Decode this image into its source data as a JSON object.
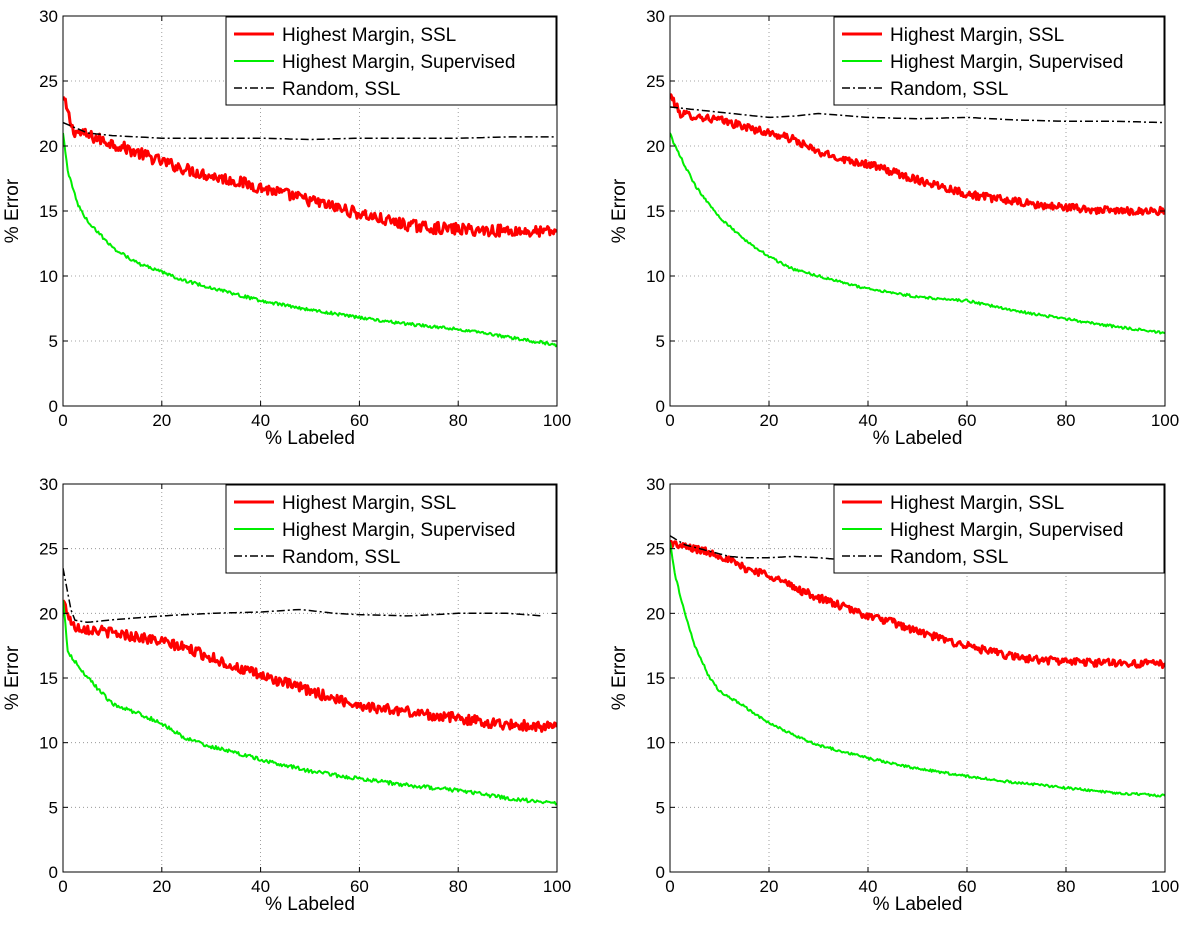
{
  "chart_data": [
    {
      "type": "line",
      "xlabel": "% Labeled",
      "ylabel": "% Error",
      "xlim": [
        0,
        100
      ],
      "ylim": [
        0,
        30
      ],
      "xticks": [
        0,
        20,
        40,
        60,
        80,
        100
      ],
      "yticks": [
        0,
        5,
        10,
        15,
        20,
        25,
        30
      ],
      "grid": true,
      "legend_position": "top-right",
      "series": [
        {
          "name": "Highest Margin, SSL",
          "color": "#ff0000",
          "style": "solid",
          "width": 3,
          "noise": 0.45,
          "x": [
            0,
            2,
            5,
            10,
            15,
            20,
            25,
            30,
            35,
            40,
            45,
            50,
            55,
            60,
            65,
            70,
            75,
            80,
            85,
            90,
            95,
            100
          ],
          "y": [
            23.8,
            21.2,
            20.8,
            20.2,
            19.5,
            18.8,
            18.2,
            17.7,
            17.3,
            16.8,
            16.3,
            15.8,
            15.3,
            14.8,
            14.3,
            13.9,
            13.7,
            13.6,
            13.5,
            13.5,
            13.4,
            13.4
          ]
        },
        {
          "name": "Highest Margin, Supervised",
          "color": "#00ee00",
          "style": "solid",
          "width": 2,
          "noise": 0.12,
          "x": [
            0,
            1,
            3,
            5,
            10,
            15,
            20,
            25,
            30,
            40,
            50,
            60,
            70,
            80,
            90,
            100
          ],
          "y": [
            21.0,
            18.0,
            15.5,
            14.2,
            12.2,
            11.0,
            10.3,
            9.6,
            9.1,
            8.1,
            7.4,
            6.8,
            6.3,
            5.9,
            5.3,
            4.7
          ]
        },
        {
          "name": "Random, SSL",
          "color": "#000000",
          "style": "dashdot",
          "width": 1.5,
          "noise": 0.0,
          "x": [
            0,
            5,
            10,
            20,
            30,
            40,
            50,
            60,
            70,
            80,
            90,
            100
          ],
          "y": [
            21.8,
            21.0,
            20.8,
            20.6,
            20.6,
            20.6,
            20.5,
            20.6,
            20.6,
            20.6,
            20.7,
            20.7
          ]
        }
      ]
    },
    {
      "type": "line",
      "xlabel": "% Labeled",
      "ylabel": "% Error",
      "xlim": [
        0,
        100
      ],
      "ylim": [
        0,
        30
      ],
      "xticks": [
        0,
        20,
        40,
        60,
        80,
        100
      ],
      "yticks": [
        0,
        5,
        10,
        15,
        20,
        25,
        30
      ],
      "grid": true,
      "legend_position": "top-right",
      "series": [
        {
          "name": "Highest Margin, SSL",
          "color": "#ff0000",
          "style": "solid",
          "width": 3,
          "noise": 0.3,
          "x": [
            0,
            2,
            5,
            10,
            15,
            20,
            25,
            30,
            35,
            40,
            45,
            50,
            55,
            60,
            65,
            70,
            75,
            80,
            85,
            90,
            95,
            100
          ],
          "y": [
            24.0,
            22.5,
            22.3,
            22.0,
            21.5,
            21.0,
            20.5,
            19.5,
            19.0,
            18.6,
            18.0,
            17.4,
            16.9,
            16.3,
            16.0,
            15.7,
            15.4,
            15.3,
            15.1,
            15.0,
            15.0,
            15.0
          ]
        },
        {
          "name": "Highest Margin, Supervised",
          "color": "#00ee00",
          "style": "solid",
          "width": 2,
          "noise": 0.1,
          "x": [
            0,
            1,
            3,
            5,
            10,
            15,
            20,
            25,
            30,
            40,
            50,
            60,
            70,
            80,
            90,
            100
          ],
          "y": [
            21.0,
            20.0,
            18.5,
            17.0,
            14.5,
            12.8,
            11.5,
            10.5,
            10.0,
            9.0,
            8.4,
            8.1,
            7.3,
            6.7,
            6.1,
            5.6
          ]
        },
        {
          "name": "Random, SSL",
          "color": "#000000",
          "style": "dashdot",
          "width": 1.5,
          "noise": 0.0,
          "x": [
            0,
            5,
            10,
            15,
            20,
            25,
            30,
            40,
            50,
            60,
            70,
            80,
            90,
            100
          ],
          "y": [
            23.0,
            22.8,
            22.6,
            22.4,
            22.2,
            22.3,
            22.5,
            22.2,
            22.1,
            22.2,
            22.0,
            21.9,
            21.9,
            21.8
          ]
        }
      ]
    },
    {
      "type": "line",
      "xlabel": "% Labeled",
      "ylabel": "% Error",
      "xlim": [
        0,
        100
      ],
      "ylim": [
        0,
        30
      ],
      "xticks": [
        0,
        20,
        40,
        60,
        80,
        100
      ],
      "yticks": [
        0,
        5,
        10,
        15,
        20,
        25,
        30
      ],
      "grid": true,
      "legend_position": "top-right",
      "series": [
        {
          "name": "Highest Margin, SSL",
          "color": "#ff0000",
          "style": "solid",
          "width": 3,
          "noise": 0.4,
          "x": [
            0,
            2,
            5,
            10,
            15,
            20,
            25,
            30,
            35,
            40,
            45,
            50,
            55,
            60,
            65,
            70,
            75,
            80,
            85,
            90,
            95,
            100
          ],
          "y": [
            21.0,
            19.0,
            18.8,
            18.5,
            18.2,
            17.8,
            17.3,
            16.6,
            15.8,
            15.2,
            14.6,
            14.0,
            13.4,
            12.9,
            12.6,
            12.4,
            12.1,
            11.9,
            11.6,
            11.4,
            11.3,
            11.2
          ]
        },
        {
          "name": "Highest Margin, Supervised",
          "color": "#00ee00",
          "style": "solid",
          "width": 2,
          "noise": 0.15,
          "x": [
            0,
            1,
            3,
            5,
            8,
            10,
            15,
            20,
            25,
            30,
            40,
            50,
            60,
            70,
            80,
            90,
            100
          ],
          "y": [
            21.0,
            17.0,
            16.0,
            15.0,
            13.8,
            13.0,
            12.3,
            11.5,
            10.3,
            9.7,
            8.7,
            7.8,
            7.2,
            6.7,
            6.3,
            5.7,
            5.3
          ]
        },
        {
          "name": "Random, SSL",
          "color": "#000000",
          "style": "dashdot",
          "width": 1.5,
          "noise": 0.0,
          "x": [
            0,
            2,
            5,
            10,
            20,
            30,
            40,
            48,
            55,
            60,
            70,
            80,
            90,
            97
          ],
          "y": [
            23.5,
            19.5,
            19.3,
            19.5,
            19.8,
            20.0,
            20.1,
            20.3,
            20.0,
            19.9,
            19.8,
            20.0,
            20.0,
            19.8
          ]
        }
      ]
    },
    {
      "type": "line",
      "xlabel": "% Labeled",
      "ylabel": "% Error",
      "xlim": [
        0,
        100
      ],
      "ylim": [
        0,
        30
      ],
      "xticks": [
        0,
        20,
        40,
        60,
        80,
        100
      ],
      "yticks": [
        0,
        5,
        10,
        15,
        20,
        25,
        30
      ],
      "grid": true,
      "legend_position": "top-right",
      "series": [
        {
          "name": "Highest Margin, SSL",
          "color": "#ff0000",
          "style": "solid",
          "width": 3,
          "noise": 0.3,
          "x": [
            0,
            2,
            5,
            10,
            15,
            20,
            25,
            30,
            35,
            40,
            45,
            50,
            55,
            60,
            65,
            70,
            75,
            80,
            85,
            90,
            95,
            100
          ],
          "y": [
            25.5,
            25.2,
            25.0,
            24.5,
            23.5,
            23.0,
            22.0,
            21.2,
            20.5,
            19.8,
            19.3,
            18.6,
            18.0,
            17.5,
            17.0,
            16.6,
            16.4,
            16.3,
            16.2,
            16.2,
            16.1,
            16.1
          ]
        },
        {
          "name": "Highest Margin, Supervised",
          "color": "#00ee00",
          "style": "solid",
          "width": 2,
          "noise": 0.1,
          "x": [
            0,
            1,
            3,
            5,
            8,
            10,
            15,
            20,
            25,
            30,
            40,
            50,
            60,
            70,
            80,
            90,
            100
          ],
          "y": [
            25.5,
            23.0,
            20.0,
            17.5,
            15.0,
            14.0,
            12.8,
            11.5,
            10.6,
            9.8,
            8.8,
            8.0,
            7.4,
            6.9,
            6.5,
            6.1,
            5.9
          ]
        },
        {
          "name": "Random, SSL",
          "color": "#000000",
          "style": "dashdot",
          "width": 1.5,
          "noise": 0.0,
          "x": [
            0,
            3,
            6,
            9,
            12,
            15,
            20,
            25,
            30,
            33
          ],
          "y": [
            26.0,
            25.3,
            25.0,
            24.7,
            24.4,
            24.3,
            24.3,
            24.4,
            24.3,
            24.2
          ]
        }
      ]
    }
  ]
}
